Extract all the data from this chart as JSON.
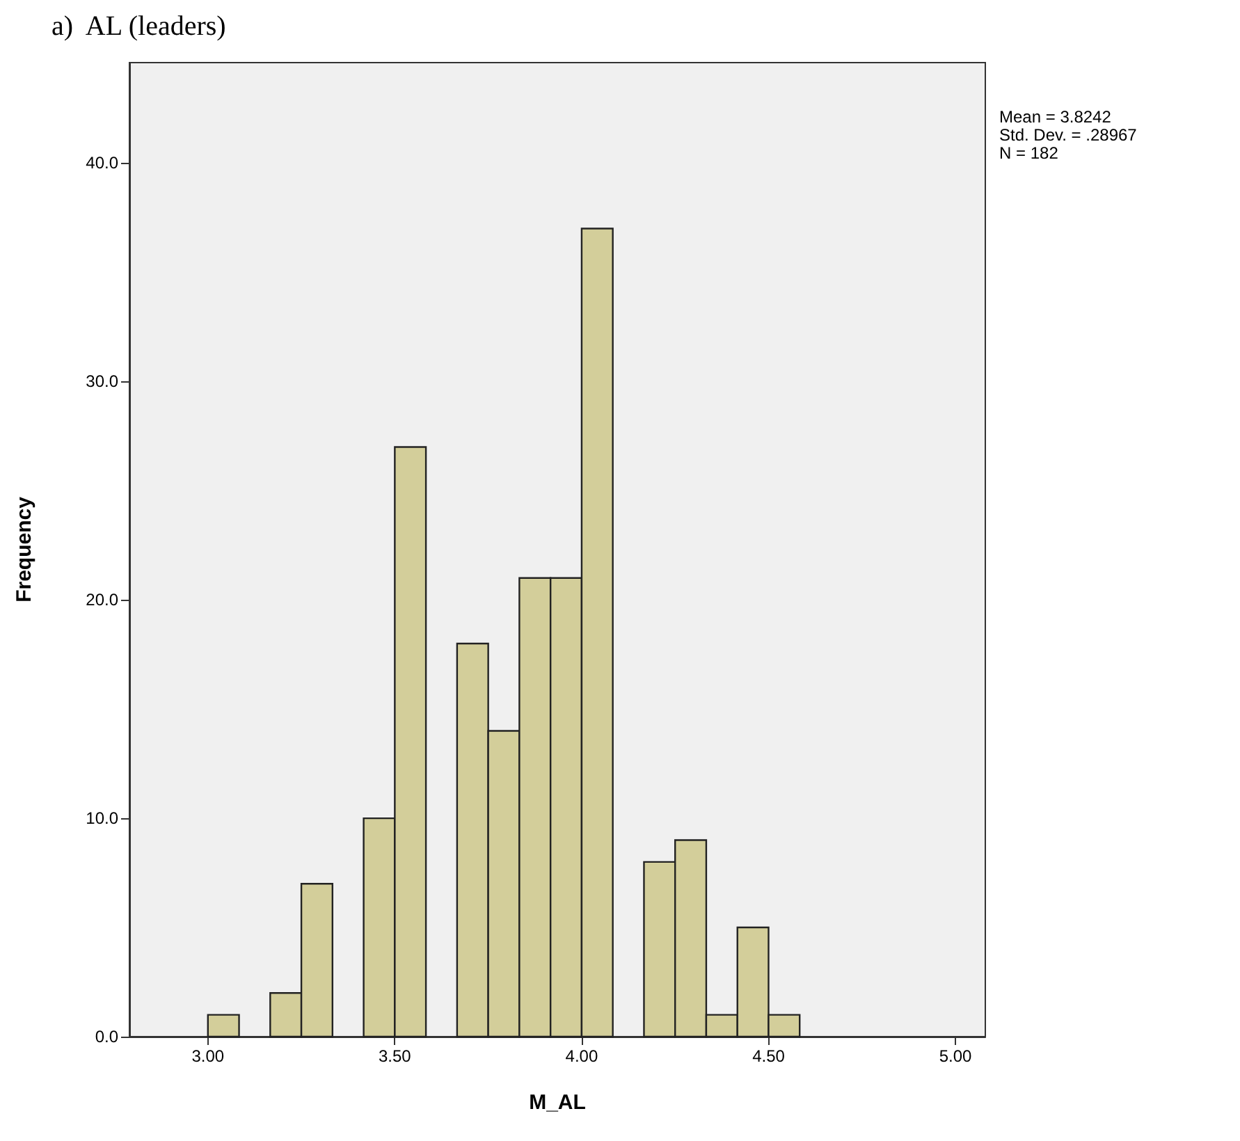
{
  "chart_data": {
    "type": "histogram",
    "title": "a)  AL (leaders)",
    "xlabel": "M_AL",
    "ylabel": "Frequency",
    "annotations": [
      "Mean = 3.8242",
      "Std. Dev. = .28967",
      "N = 182"
    ],
    "bins": [
      3,
      3.0833,
      3.1667,
      3.25,
      3.3333,
      3.4167,
      3.5,
      3.5833,
      3.6667,
      3.75,
      3.8333,
      3.9167,
      4,
      4.0833,
      4.1667,
      4.25,
      4.3333,
      4.4167,
      4.5,
      4.5833
    ],
    "values": [
      1,
      0,
      2,
      7,
      0,
      10,
      27,
      0,
      18,
      14,
      21,
      21,
      37,
      0,
      8,
      9,
      1,
      5,
      1
    ],
    "color": "#d3ce9a",
    "xlim": [
      2.79,
      5.08
    ],
    "xticks": [
      {
        "value": 3,
        "label": "3.00"
      },
      {
        "value": 3.5,
        "label": "3.50"
      },
      {
        "value": 4,
        "label": "4.00"
      },
      {
        "value": 4.5,
        "label": "4.50"
      },
      {
        "value": 5,
        "label": "5.00"
      }
    ],
    "ylim": [
      0,
      44.6
    ],
    "yticks": [
      {
        "value": 0,
        "label": "0.0"
      },
      {
        "value": 10,
        "label": "10.0"
      },
      {
        "value": 20,
        "label": "20.0"
      },
      {
        "value": 30,
        "label": "30.0"
      },
      {
        "value": 40,
        "label": "40.0"
      }
    ],
    "grid": false
  }
}
